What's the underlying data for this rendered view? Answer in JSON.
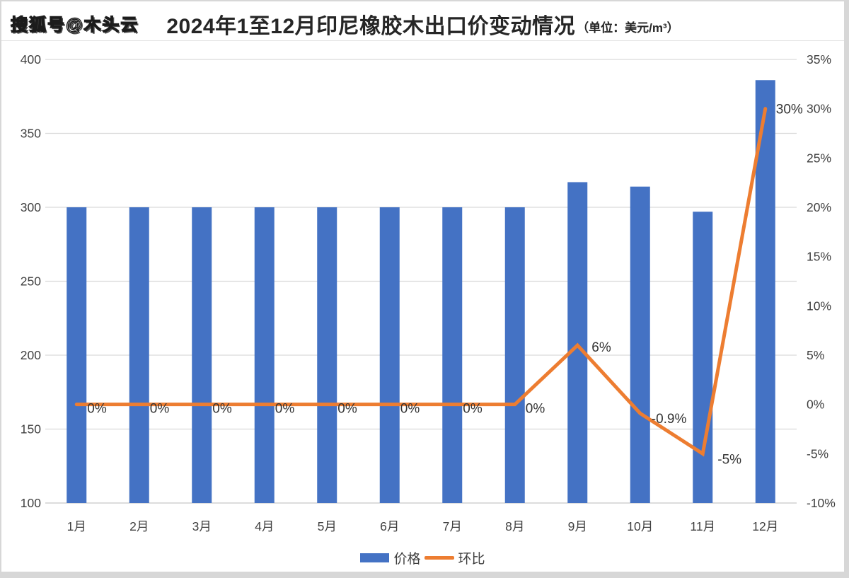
{
  "watermark": "搜狐号@木头云",
  "title": {
    "main": "2024年1至12月印尼橡胶木出口价变动情况",
    "unit": "（单位：美元/m³）"
  },
  "colors": {
    "bar": "#4472C4",
    "line": "#ED7D31",
    "grid": "#d9d9d9",
    "axis_text": "#404040",
    "data_label": "#333333"
  },
  "chart_data": {
    "type": "bar",
    "subtype": "combo-bar-line",
    "categories": [
      "1月",
      "2月",
      "3月",
      "4月",
      "5月",
      "6月",
      "7月",
      "8月",
      "9月",
      "10月",
      "11月",
      "12月"
    ],
    "series": [
      {
        "name": "价格",
        "type": "bar",
        "axis": "left",
        "color": "#4472C4",
        "values": [
          300,
          300,
          300,
          300,
          300,
          300,
          300,
          300,
          317,
          314,
          297,
          386
        ]
      },
      {
        "name": "环比",
        "type": "line",
        "axis": "right",
        "color": "#ED7D31",
        "values": [
          0,
          0,
          0,
          0,
          0,
          0,
          0,
          0,
          6,
          -0.9,
          -5,
          30
        ],
        "point_labels": [
          "0%",
          "0%",
          "0%",
          "0%",
          "0%",
          "0%",
          "0%",
          "0%",
          "6%",
          "-0.9%",
          "-5%",
          "30%"
        ]
      }
    ],
    "title": "2024年1至12月印尼橡胶木出口价变动情况",
    "unit_note": "单位：美元/m³",
    "xlabel": "",
    "ylabel_left": "",
    "ylabel_right": "",
    "left_axis": {
      "min": 100,
      "max": 400,
      "step": 50,
      "ticks": [
        "400",
        "350",
        "300",
        "250",
        "200",
        "150",
        "100"
      ]
    },
    "right_axis": {
      "min": -10,
      "max": 35,
      "step": 5,
      "ticks": [
        "35%",
        "30%",
        "25%",
        "20%",
        "15%",
        "10%",
        "5%",
        "0%",
        "-5%",
        "-10%"
      ]
    },
    "grid": "horizontal",
    "legend_position": "bottom"
  }
}
